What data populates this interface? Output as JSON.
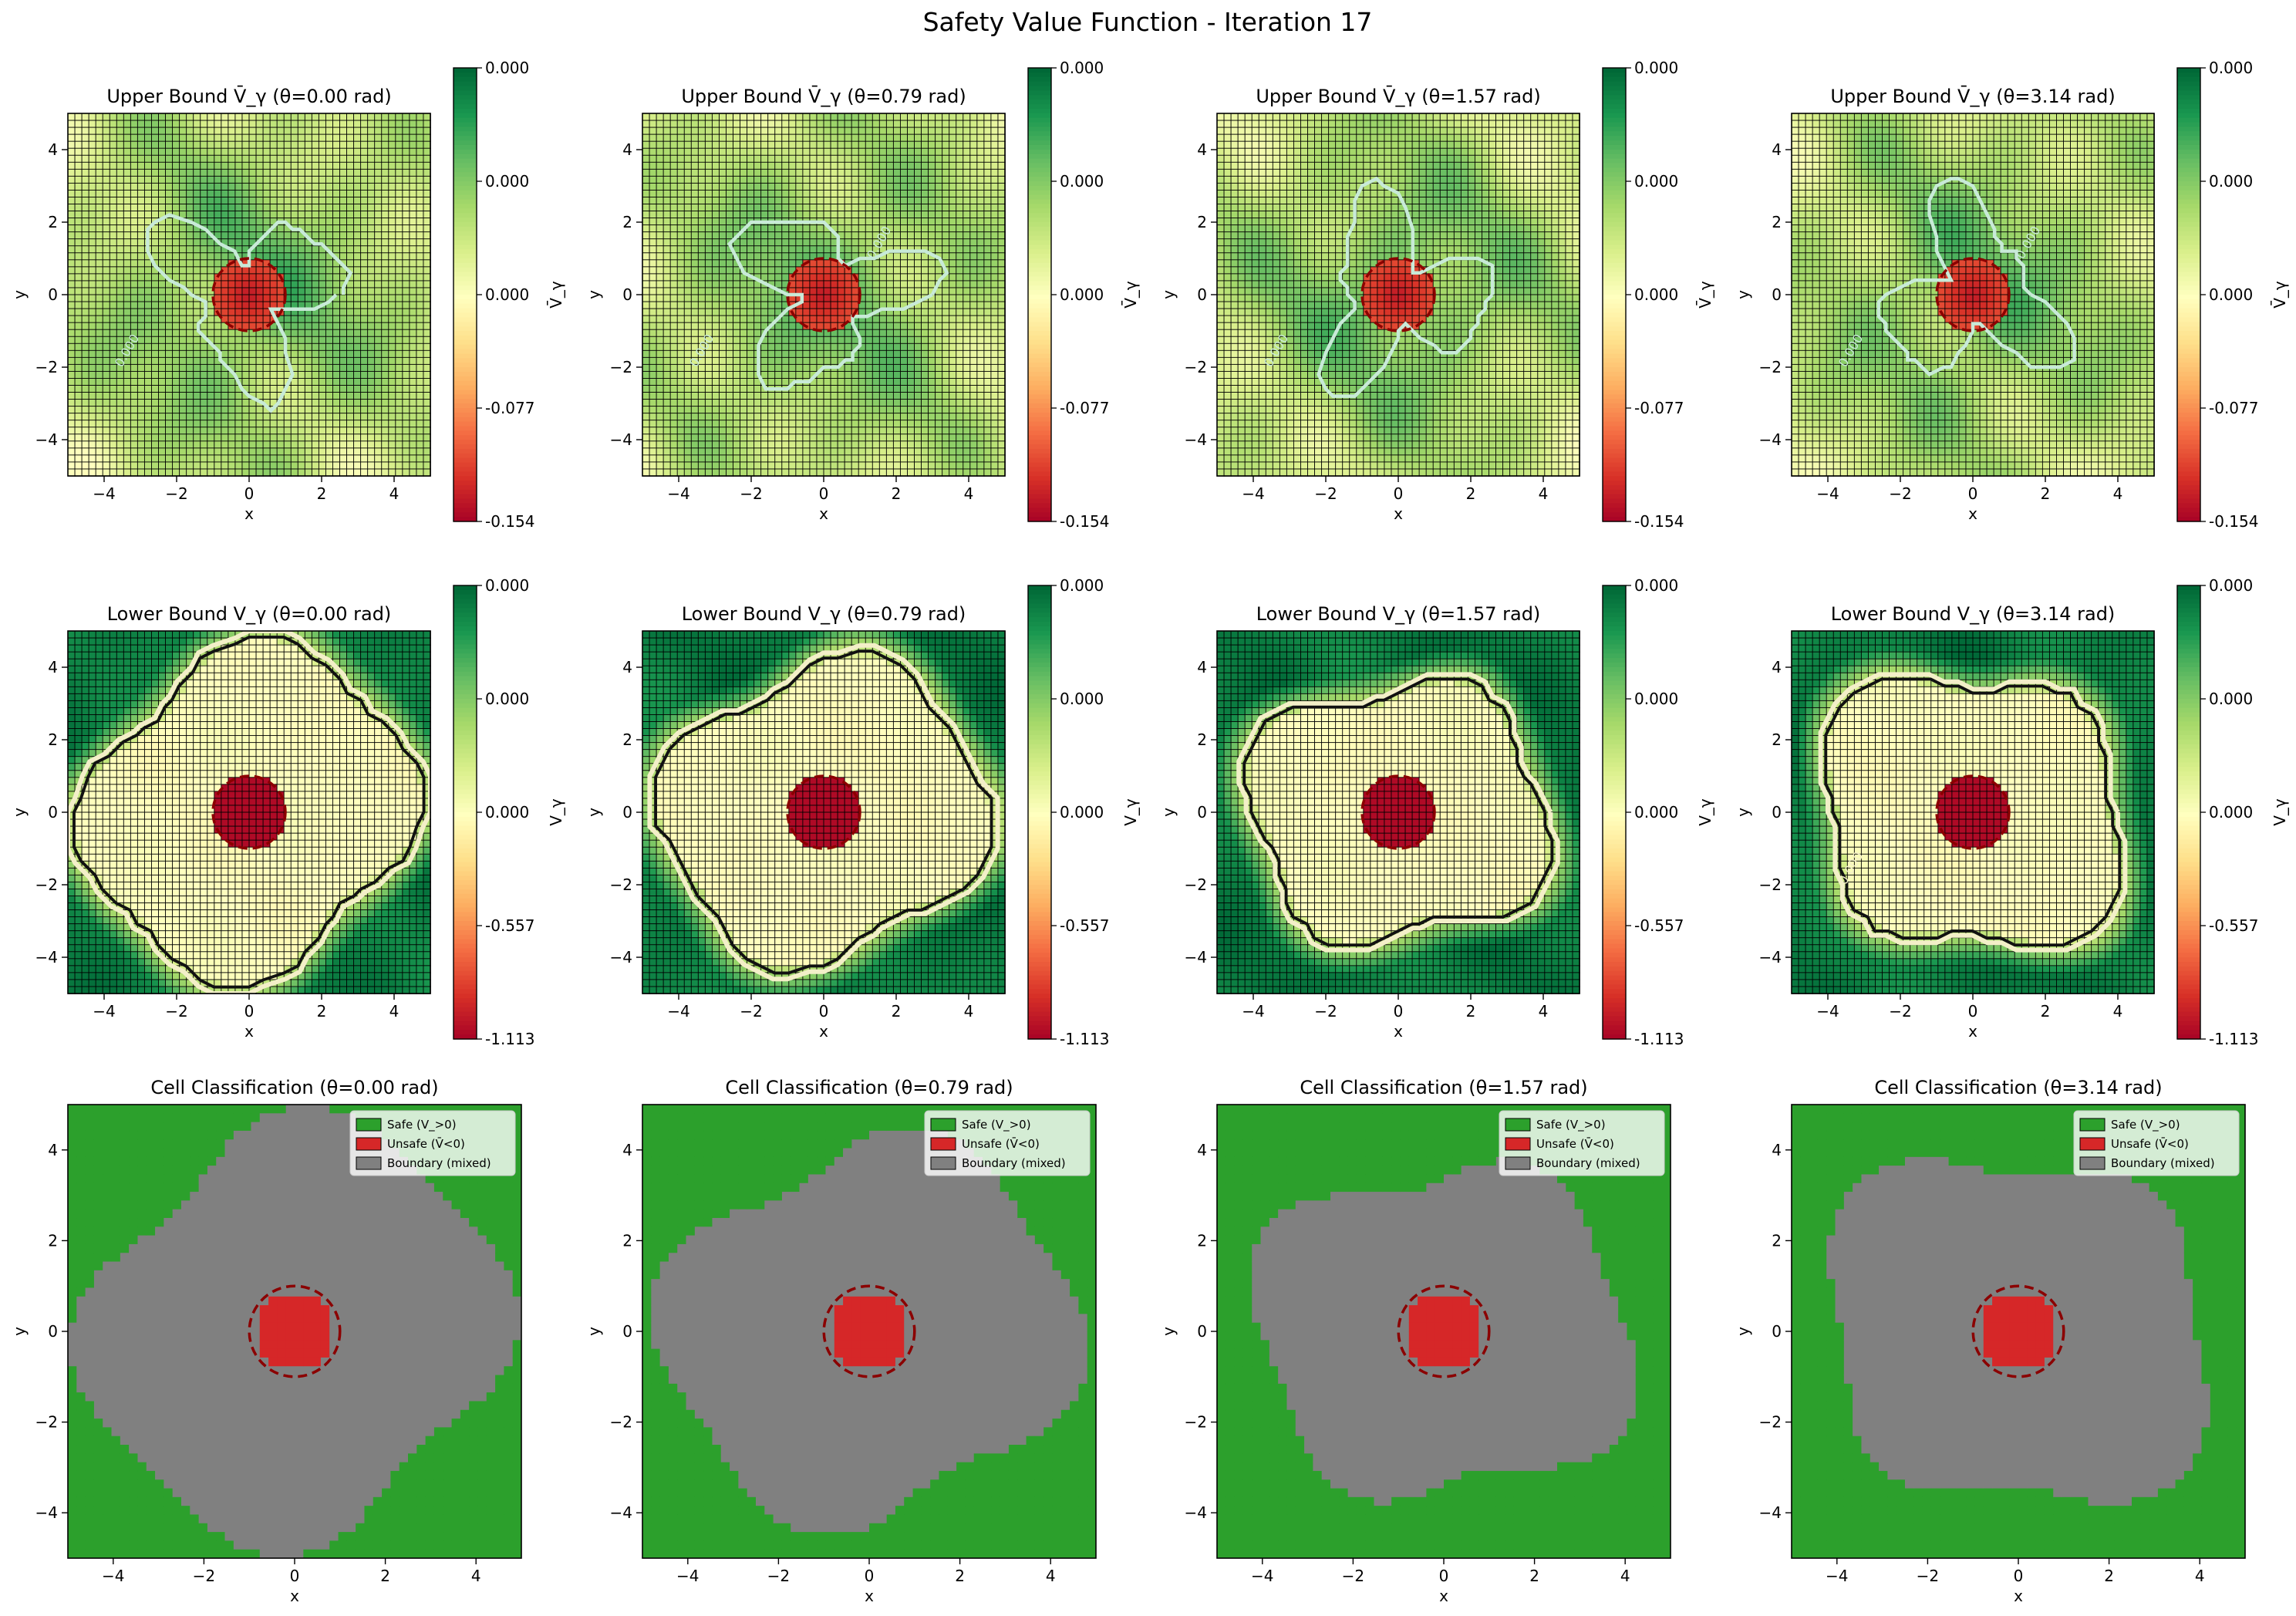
{
  "figure": {
    "title": "Safety Value Function - Iteration 17"
  },
  "chart_data": [
    {
      "type": "heatmap",
      "row": 1,
      "col": 1,
      "title": "Upper Bound V̄_γ (θ=0.00 rad)",
      "xlabel": "x",
      "ylabel": "y",
      "xlim": [
        -5,
        5
      ],
      "ylim": [
        -5,
        5
      ],
      "x_ticks": [
        "−4",
        "−2",
        "0",
        "2",
        "4"
      ],
      "y_ticks": [
        "−4",
        "−2",
        "0",
        "2",
        "4"
      ],
      "colorbar": {
        "label": "V̄_γ",
        "ticks": [
          "0.000",
          "0.000",
          "0.000",
          "-0.077",
          "-0.154"
        ],
        "range": [
          -0.154,
          0.0
        ]
      },
      "contour_labels": [
        "0.000"
      ],
      "obstacle": {
        "center": [
          0,
          0
        ],
        "radius": 1.0
      }
    },
    {
      "type": "heatmap",
      "row": 1,
      "col": 2,
      "title": "Upper Bound V̄_γ (θ=0.79 rad)",
      "xlabel": "x",
      "ylabel": "y",
      "xlim": [
        -5,
        5
      ],
      "ylim": [
        -5,
        5
      ],
      "x_ticks": [
        "−4",
        "−2",
        "0",
        "2",
        "4"
      ],
      "y_ticks": [
        "−4",
        "−2",
        "0",
        "2",
        "4"
      ],
      "colorbar": {
        "label": "V̄_γ",
        "ticks": [
          "0.000",
          "0.000",
          "0.000",
          "-0.077",
          "-0.154"
        ],
        "range": [
          -0.154,
          0.0
        ]
      },
      "contour_labels": [
        "0.000",
        "0.000"
      ],
      "obstacle": {
        "center": [
          0,
          0
        ],
        "radius": 1.0
      }
    },
    {
      "type": "heatmap",
      "row": 1,
      "col": 3,
      "title": "Upper Bound V̄_γ (θ=1.57 rad)",
      "xlabel": "x",
      "ylabel": "y",
      "xlim": [
        -5,
        5
      ],
      "ylim": [
        -5,
        5
      ],
      "x_ticks": [
        "−4",
        "−2",
        "0",
        "2",
        "4"
      ],
      "y_ticks": [
        "−4",
        "−2",
        "0",
        "2",
        "4"
      ],
      "colorbar": {
        "label": "V̄_γ",
        "ticks": [
          "0.000",
          "0.000",
          "0.000",
          "-0.077",
          "-0.154"
        ],
        "range": [
          -0.154,
          0.0
        ]
      },
      "contour_labels": [
        "0.000"
      ],
      "obstacle": {
        "center": [
          0,
          0
        ],
        "radius": 1.0
      }
    },
    {
      "type": "heatmap",
      "row": 1,
      "col": 4,
      "title": "Upper Bound V̄_γ (θ=3.14 rad)",
      "xlabel": "x",
      "ylabel": "y",
      "xlim": [
        -5,
        5
      ],
      "ylim": [
        -5,
        5
      ],
      "x_ticks": [
        "−4",
        "−2",
        "0",
        "2",
        "4"
      ],
      "y_ticks": [
        "−4",
        "−2",
        "0",
        "2",
        "4"
      ],
      "colorbar": {
        "label": "V̄_γ",
        "ticks": [
          "0.000",
          "0.000",
          "0.000",
          "-0.077",
          "-0.154"
        ],
        "range": [
          -0.154,
          0.0
        ]
      },
      "contour_labels": [
        "0.000",
        "0.000"
      ],
      "obstacle": {
        "center": [
          0,
          0
        ],
        "radius": 1.0
      }
    },
    {
      "type": "heatmap",
      "row": 2,
      "col": 1,
      "title": "Lower Bound V_γ (θ=0.00 rad)",
      "xlabel": "x",
      "ylabel": "y",
      "xlim": [
        -5,
        5
      ],
      "ylim": [
        -5,
        5
      ],
      "x_ticks": [
        "−4",
        "−2",
        "0",
        "2",
        "4"
      ],
      "y_ticks": [
        "−4",
        "−2",
        "0",
        "2",
        "4"
      ],
      "colorbar": {
        "label": "V_γ",
        "ticks": [
          "0.000",
          "0.000",
          "0.000",
          "-0.557",
          "-1.113"
        ],
        "range": [
          -1.113,
          0.0
        ]
      },
      "contour_labels": [],
      "obstacle": {
        "center": [
          0,
          0
        ],
        "radius": 1.0
      }
    },
    {
      "type": "heatmap",
      "row": 2,
      "col": 2,
      "title": "Lower Bound V_γ (θ=0.79 rad)",
      "xlabel": "x",
      "ylabel": "y",
      "xlim": [
        -5,
        5
      ],
      "ylim": [
        -5,
        5
      ],
      "x_ticks": [
        "−4",
        "−2",
        "0",
        "2",
        "4"
      ],
      "y_ticks": [
        "−4",
        "−2",
        "0",
        "2",
        "4"
      ],
      "colorbar": {
        "label": "V_γ",
        "ticks": [
          "0.000",
          "0.000",
          "0.000",
          "-0.557",
          "-1.113"
        ],
        "range": [
          -1.113,
          0.0
        ]
      },
      "contour_labels": [],
      "obstacle": {
        "center": [
          0,
          0
        ],
        "radius": 1.0
      }
    },
    {
      "type": "heatmap",
      "row": 2,
      "col": 3,
      "title": "Lower Bound V_γ (θ=1.57 rad)",
      "xlabel": "x",
      "ylabel": "y",
      "xlim": [
        -5,
        5
      ],
      "ylim": [
        -5,
        5
      ],
      "x_ticks": [
        "−4",
        "−2",
        "0",
        "2",
        "4"
      ],
      "y_ticks": [
        "−4",
        "−2",
        "0",
        "2",
        "4"
      ],
      "colorbar": {
        "label": "V_γ",
        "ticks": [
          "0.000",
          "0.000",
          "0.000",
          "-0.557",
          "-1.113"
        ],
        "range": [
          -1.113,
          0.0
        ]
      },
      "contour_labels": [],
      "obstacle": {
        "center": [
          0,
          0
        ],
        "radius": 1.0
      }
    },
    {
      "type": "heatmap",
      "row": 2,
      "col": 4,
      "title": "Lower Bound V_γ (θ=3.14 rad)",
      "xlabel": "x",
      "ylabel": "y",
      "xlim": [
        -5,
        5
      ],
      "ylim": [
        -5,
        5
      ],
      "x_ticks": [
        "−4",
        "−2",
        "0",
        "2",
        "4"
      ],
      "y_ticks": [
        "−4",
        "−2",
        "0",
        "2",
        "4"
      ],
      "colorbar": {
        "label": "V_γ",
        "ticks": [
          "0.000",
          "0.000",
          "0.000",
          "-0.557",
          "-1.113"
        ],
        "range": [
          -1.113,
          0.0
        ]
      },
      "contour_labels": [
        "0.000"
      ],
      "obstacle": {
        "center": [
          0,
          0
        ],
        "radius": 1.0
      }
    },
    {
      "type": "heatmap",
      "row": 3,
      "col": 1,
      "title": "Cell Classification (θ=0.00 rad)",
      "xlabel": "x",
      "ylabel": "y",
      "xlim": [
        -5,
        5
      ],
      "ylim": [
        -5,
        5
      ],
      "x_ticks": [
        "−4",
        "−2",
        "0",
        "2",
        "4"
      ],
      "y_ticks": [
        "−4",
        "−2",
        "0",
        "2",
        "4"
      ],
      "legend": {
        "position": "top-right",
        "entries": [
          "Safe (V_>0)",
          "Unsafe (V̄<0)",
          "Boundary (mixed)"
        ]
      },
      "obstacle": {
        "center": [
          0,
          0
        ],
        "radius": 1.0
      }
    },
    {
      "type": "heatmap",
      "row": 3,
      "col": 2,
      "title": "Cell Classification (θ=0.79 rad)",
      "xlabel": "x",
      "ylabel": "y",
      "xlim": [
        -5,
        5
      ],
      "ylim": [
        -5,
        5
      ],
      "x_ticks": [
        "−4",
        "−2",
        "0",
        "2",
        "4"
      ],
      "y_ticks": [
        "−4",
        "−2",
        "0",
        "2",
        "4"
      ],
      "legend": {
        "position": "top-right",
        "entries": [
          "Safe (V_>0)",
          "Unsafe (V̄<0)",
          "Boundary (mixed)"
        ]
      },
      "obstacle": {
        "center": [
          0,
          0
        ],
        "radius": 1.0
      }
    },
    {
      "type": "heatmap",
      "row": 3,
      "col": 3,
      "title": "Cell Classification (θ=1.57 rad)",
      "xlabel": "x",
      "ylabel": "y",
      "xlim": [
        -5,
        5
      ],
      "ylim": [
        -5,
        5
      ],
      "x_ticks": [
        "−4",
        "−2",
        "0",
        "2",
        "4"
      ],
      "y_ticks": [
        "−4",
        "−2",
        "0",
        "2",
        "4"
      ],
      "legend": {
        "position": "top-right",
        "entries": [
          "Safe (V_>0)",
          "Unsafe (V̄<0)",
          "Boundary (mixed)"
        ]
      },
      "obstacle": {
        "center": [
          0,
          0
        ],
        "radius": 1.0
      }
    },
    {
      "type": "heatmap",
      "row": 3,
      "col": 4,
      "title": "Cell Classification (θ=3.14 rad)",
      "xlabel": "x",
      "ylabel": "y",
      "xlim": [
        -5,
        5
      ],
      "ylim": [
        -5,
        5
      ],
      "x_ticks": [
        "−4",
        "−2",
        "0",
        "2",
        "4"
      ],
      "y_ticks": [
        "−4",
        "−2",
        "0",
        "2",
        "4"
      ],
      "legend": {
        "position": "top-right",
        "entries": [
          "Safe (V_>0)",
          "Unsafe (V̄<0)",
          "Boundary (mixed)"
        ]
      },
      "obstacle": {
        "center": [
          0,
          0
        ],
        "radius": 1.0
      }
    }
  ],
  "colors": {
    "safe": "#2ca02c",
    "unsafe": "#d62728",
    "boundary": "#808080",
    "obstacle_ring": "#8b0000",
    "contour_upper": "#c8ead8",
    "contour_lower_light": "#f3efc8",
    "contour_lower_dark": "#111111",
    "grid_line": "#000000",
    "cmap": [
      "#a50026",
      "#d73027",
      "#f46d43",
      "#fdae61",
      "#fee08b",
      "#ffffbf",
      "#d9ef8b",
      "#a6d96a",
      "#66bd63",
      "#1a9850",
      "#006837"
    ]
  }
}
